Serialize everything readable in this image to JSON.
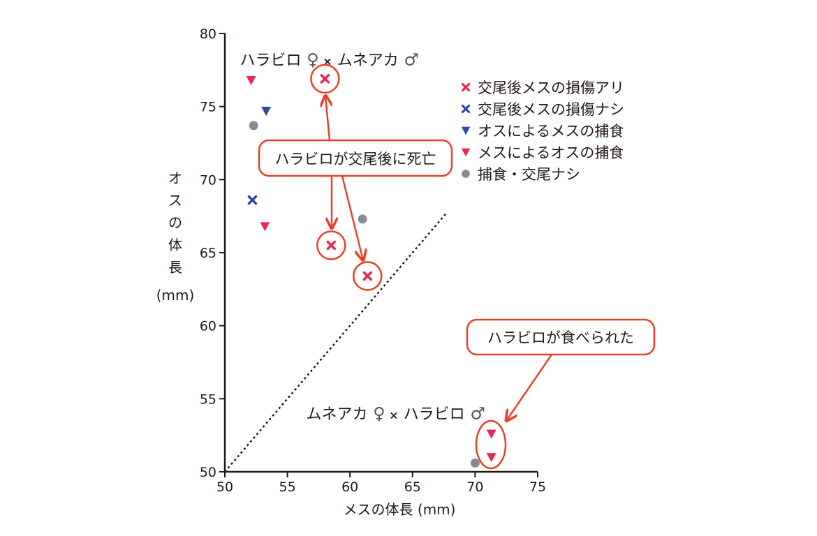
{
  "chart_data": {
    "type": "scatter",
    "xlabel": "メスの体長 (mm)",
    "ylabel_lines": [
      "オ",
      "ス",
      "の",
      "体",
      "長",
      "(mm)"
    ],
    "xlim": [
      50,
      75
    ],
    "ylim": [
      50,
      80
    ],
    "xticks": [
      50,
      55,
      60,
      65,
      70,
      75
    ],
    "yticks": [
      50,
      55,
      60,
      65,
      70,
      75,
      80
    ],
    "grid": false,
    "legend_position": "top-right",
    "reference_line": {
      "style": "dotted",
      "from": [
        50,
        50
      ],
      "to": [
        67.7,
        67.7
      ]
    },
    "series": [
      {
        "name": "交尾後メスの損傷アリ",
        "marker": "x",
        "color": "#e8294f",
        "points": [
          [
            58.0,
            76.9
          ],
          [
            58.5,
            65.5
          ],
          [
            61.4,
            63.4
          ]
        ]
      },
      {
        "name": "交尾後メスの損傷ナシ",
        "marker": "x",
        "color": "#2e4a9e",
        "points": [
          [
            52.2,
            68.6
          ]
        ]
      },
      {
        "name": "オスによるメスの捕食",
        "marker": "triangle-down",
        "color": "#2e4a9e",
        "points": [
          [
            53.3,
            74.7
          ]
        ]
      },
      {
        "name": "メスによるオスの捕食",
        "marker": "triangle-down",
        "color": "#e8294f",
        "points": [
          [
            52.1,
            76.8
          ],
          [
            53.2,
            66.8
          ],
          [
            71.3,
            52.6
          ],
          [
            71.3,
            51.0
          ]
        ]
      },
      {
        "name": "捕食・交尾ナシ",
        "marker": "circle",
        "color": "#868c93",
        "points": [
          [
            52.3,
            73.7
          ],
          [
            61.0,
            67.3
          ],
          [
            70.0,
            50.6
          ]
        ]
      }
    ],
    "group_labels": [
      {
        "parts": [
          "ハラビロ",
          "♀",
          "×",
          "ムネアカ",
          "♂"
        ],
        "at": [
          51.2,
          78.2
        ]
      },
      {
        "parts": [
          "ムネアカ",
          "♀",
          "×",
          "ハラビロ",
          "♂"
        ],
        "at": [
          56.5,
          54.0
        ]
      }
    ],
    "annotations": [
      {
        "text": "ハラビロが交尾後に死亡",
        "color": "#e8402a"
      },
      {
        "text": "ハラビロが食べられた",
        "color": "#e8402a"
      }
    ]
  }
}
